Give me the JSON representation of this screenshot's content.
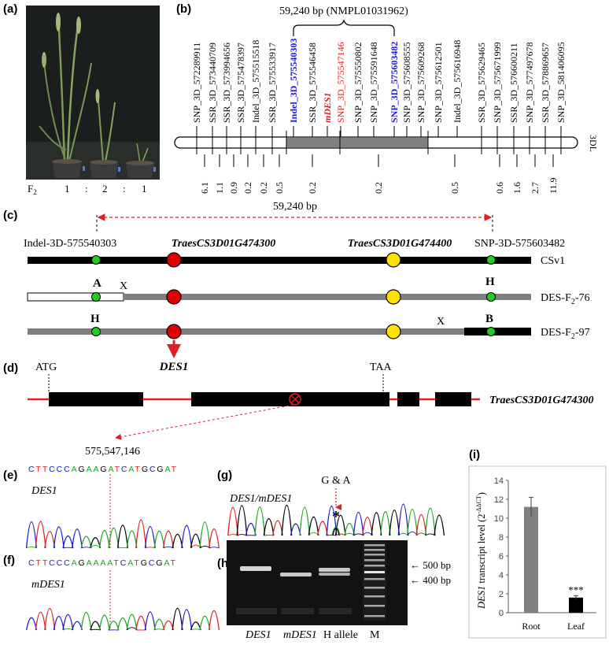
{
  "panel_labels": [
    "(a)",
    "(b)",
    "(c)",
    "(d)",
    "(e)",
    "(f)",
    "(g)",
    "(h)",
    "(i)"
  ],
  "a": {
    "generation": "F",
    "generation_sub": "2",
    "ratio": [
      "1",
      ":",
      "2",
      ":",
      "1"
    ]
  },
  "b": {
    "interval_label": "59,240 bp (NMPL01031962)",
    "chromosome": "3DL",
    "markers": [
      {
        "name": "SNP_3D_572289911",
        "style": "normal"
      },
      {
        "name": "SSR_3D_573440709",
        "style": "normal"
      },
      {
        "name": "SSR_3D_573994656",
        "style": "normal"
      },
      {
        "name": "SSR_3D_575478397",
        "style": "normal"
      },
      {
        "name": "Indel_3D_575515518",
        "style": "normal"
      },
      {
        "name": "SSR_3D_575533917",
        "style": "normal"
      },
      {
        "name": "Indel_3D_575540303",
        "style": "blue"
      },
      {
        "name": "SSR_3D_575546458",
        "style": "normal"
      },
      {
        "name": "mDES1",
        "style": "red"
      },
      {
        "name": "SNP_3D_575547146",
        "style": "redplain"
      },
      {
        "name": "SNP_3D_575550802",
        "style": "normal"
      },
      {
        "name": "SNP_3D_575591648",
        "style": "normal"
      },
      {
        "name": "SNP_3D_575603482",
        "style": "blue"
      },
      {
        "name": "SNP_3D_575608555",
        "style": "normal"
      },
      {
        "name": "SNP_3D_575609268",
        "style": "normal"
      },
      {
        "name": "SNP_3D_575612501",
        "style": "normal"
      },
      {
        "name": "Indel_3D_575616948",
        "style": "normal"
      },
      {
        "name": "SSR_3D_575629465",
        "style": "normal"
      },
      {
        "name": "SNP_3D_575671999",
        "style": "normal"
      },
      {
        "name": "SSR_3D_576600211",
        "style": "normal"
      },
      {
        "name": "SNP_3D_577497678",
        "style": "normal"
      },
      {
        "name": "SSR_3D_578869657",
        "style": "normal"
      },
      {
        "name": "SNP_3D_581406095",
        "style": "normal"
      }
    ],
    "distances": [
      "6.1",
      "1.1",
      "0.9",
      "0.2",
      "0.2",
      "0.5",
      "0.2",
      "0.2",
      "0.5",
      "0.6",
      "1.6",
      "2.7",
      "11.9"
    ]
  },
  "c": {
    "distance": "59,240 bp",
    "marker_left": "Indel-3D-575540303",
    "marker_right": "SNP-3D-575603482",
    "gene1": "TraesCS3D01G474300",
    "gene2": "TraesCS3D01G474400",
    "rows": [
      {
        "name": "CSv1"
      },
      {
        "name": "DES-F",
        "sub": "2",
        "suffix": "-76",
        "left_genotype": "A",
        "right_genotype": "H"
      },
      {
        "name": "DES-F",
        "sub": "2",
        "suffix": "-97",
        "left_genotype": "H",
        "right_genotype": "B"
      }
    ],
    "crossover": "X",
    "candidate": "DES1"
  },
  "d": {
    "start_codon": "ATG",
    "stop_codon": "TAA",
    "gene": "TraesCS3D01G474300"
  },
  "e": {
    "position": "575,547,146",
    "sequence": "CTTCCCAGAAGATCATGCGAT",
    "allele": "DES1"
  },
  "f": {
    "sequence": "CTTCCCAGAAAATCATGCGAT",
    "allele": "mDES1"
  },
  "g": {
    "allele": "DES1/mDES1",
    "mark": "G & A",
    "star": "*"
  },
  "h": {
    "lanes": [
      "DES1",
      "mDES1",
      "H allele",
      "M"
    ],
    "bands": [
      "← 500 bp",
      "← 400 bp"
    ]
  },
  "i": {
    "chart_data": {
      "type": "bar",
      "categories": [
        "Root",
        "Leaf"
      ],
      "values": [
        11.2,
        1.6
      ],
      "errors": [
        1.0,
        0.2
      ],
      "colors": [
        "#808080",
        "#000000"
      ],
      "ylim": [
        0,
        14
      ],
      "yticks": [
        "0",
        "2",
        "4",
        "6",
        "8",
        "10",
        "12",
        "14"
      ],
      "ylabel_gene": "DES1",
      "ylabel_rest": " transcript  level (2",
      "ylabel_exp": "-ΔΔCT",
      "ylabel_close": ")",
      "significance": "***"
    }
  }
}
